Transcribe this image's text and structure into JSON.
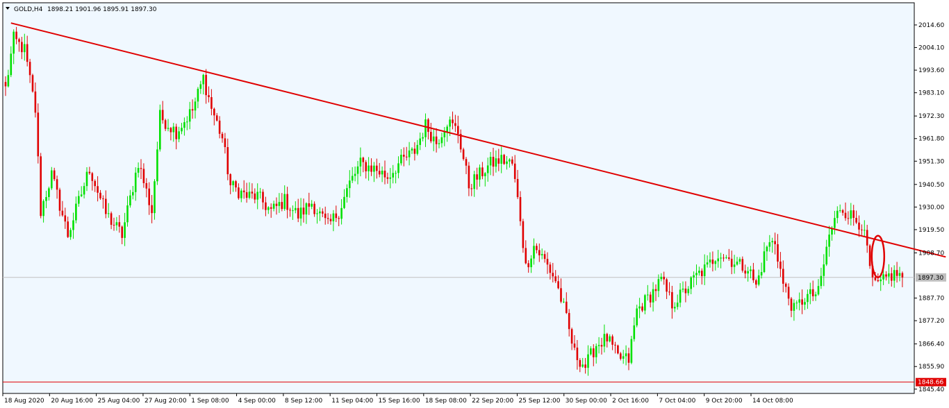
{
  "header": {
    "symbol": "GOLD,H4",
    "ohlc": "1898.21 1901.96 1895.91 1897.30",
    "menu_icon": "triangle-down-icon"
  },
  "colors": {
    "background": "#F0F8FF",
    "bull": "#00E000",
    "bear": "#E00000",
    "trendline": "#E00000",
    "current_price_line": "#C0C0C0",
    "support_line": "#E00000",
    "annotation": "#E00000"
  },
  "chart_data": {
    "type": "candlestick",
    "symbol": "GOLD",
    "timeframe": "H4",
    "yticks": [
      2014.6,
      2004.1,
      1993.6,
      1983.1,
      1972.3,
      1961.8,
      1951.3,
      1940.5,
      1930.0,
      1919.5,
      1908.7,
      1887.7,
      1877.2,
      1866.4,
      1855.9,
      1845.4
    ],
    "ytick_labels": [
      "2014.60",
      "2004.10",
      "1993.60",
      "1983.10",
      "1972.30",
      "1961.80",
      "1951.30",
      "1940.50",
      "1930.00",
      "1919.50",
      "1908.70",
      "1887.70",
      "1877.20",
      "1866.40",
      "1855.90",
      "1845.40"
    ],
    "ylim": [
      1843.4,
      2024.9
    ],
    "xtick_labels": [
      "18 Aug 2020",
      "20 Aug 16:00",
      "25 Aug 04:00",
      "27 Aug 20:00",
      "1 Sep 08:00",
      "4 Sep 00:00",
      "8 Sep 12:00",
      "11 Sep 04:00",
      "15 Sep 16:00",
      "18 Sep 08:00",
      "22 Sep 20:00",
      "25 Sep 12:00",
      "30 Sep 00:00",
      "2 Oct 16:00",
      "7 Oct 04:00",
      "9 Oct 20:00",
      "14 Oct 08:00"
    ],
    "current_price": {
      "value": 1897.3,
      "label": "1897.30"
    },
    "support_level": {
      "value": 1848.66,
      "label": "1848.66"
    },
    "trendline": {
      "start": {
        "bar": 2,
        "price": 2015.5
      },
      "end": {
        "bar": 347,
        "price": 1906.8
      }
    },
    "annotation": {
      "type": "ellipse",
      "center": {
        "bar": 322,
        "price": 1907.0
      }
    },
    "anchors": [
      {
        "bar": 0,
        "price": 1985
      },
      {
        "bar": 3,
        "price": 2008
      },
      {
        "bar": 7,
        "price": 2003
      },
      {
        "bar": 11,
        "price": 1975
      },
      {
        "bar": 13,
        "price": 1928
      },
      {
        "bar": 17,
        "price": 1945
      },
      {
        "bar": 23,
        "price": 1917
      },
      {
        "bar": 31,
        "price": 1948
      },
      {
        "bar": 37,
        "price": 1927
      },
      {
        "bar": 43,
        "price": 1917
      },
      {
        "bar": 49,
        "price": 1951
      },
      {
        "bar": 54,
        "price": 1928
      },
      {
        "bar": 57,
        "price": 1972
      },
      {
        "bar": 63,
        "price": 1965
      },
      {
        "bar": 69,
        "price": 1975
      },
      {
        "bar": 73,
        "price": 1990
      },
      {
        "bar": 76,
        "price": 1976
      },
      {
        "bar": 80,
        "price": 1962
      },
      {
        "bar": 83,
        "price": 1940
      },
      {
        "bar": 89,
        "price": 1935
      },
      {
        "bar": 93,
        "price": 1935
      },
      {
        "bar": 98,
        "price": 1928
      },
      {
        "bar": 103,
        "price": 1933
      },
      {
        "bar": 108,
        "price": 1926
      },
      {
        "bar": 113,
        "price": 1932
      },
      {
        "bar": 119,
        "price": 1921
      },
      {
        "bar": 123,
        "price": 1928
      },
      {
        "bar": 127,
        "price": 1941
      },
      {
        "bar": 131,
        "price": 1950
      },
      {
        "bar": 136,
        "price": 1948
      },
      {
        "bar": 141,
        "price": 1944
      },
      {
        "bar": 145,
        "price": 1950
      },
      {
        "bar": 151,
        "price": 1956
      },
      {
        "bar": 155,
        "price": 1968
      },
      {
        "bar": 159,
        "price": 1960
      },
      {
        "bar": 163,
        "price": 1970
      },
      {
        "bar": 167,
        "price": 1965
      },
      {
        "bar": 171,
        "price": 1940
      },
      {
        "bar": 175,
        "price": 1945
      },
      {
        "bar": 179,
        "price": 1950
      },
      {
        "bar": 183,
        "price": 1952
      },
      {
        "bar": 187,
        "price": 1950
      },
      {
        "bar": 190,
        "price": 1925
      },
      {
        "bar": 192,
        "price": 1902
      },
      {
        "bar": 195,
        "price": 1912
      },
      {
        "bar": 199,
        "price": 1905
      },
      {
        "bar": 203,
        "price": 1896
      },
      {
        "bar": 206,
        "price": 1883
      },
      {
        "bar": 210,
        "price": 1862
      },
      {
        "bar": 214,
        "price": 1856
      },
      {
        "bar": 218,
        "price": 1866
      },
      {
        "bar": 222,
        "price": 1869
      },
      {
        "bar": 226,
        "price": 1860
      },
      {
        "bar": 230,
        "price": 1859
      },
      {
        "bar": 233,
        "price": 1882
      },
      {
        "bar": 238,
        "price": 1889
      },
      {
        "bar": 242,
        "price": 1896
      },
      {
        "bar": 246,
        "price": 1885
      },
      {
        "bar": 250,
        "price": 1890
      },
      {
        "bar": 255,
        "price": 1898
      },
      {
        "bar": 259,
        "price": 1902
      },
      {
        "bar": 263,
        "price": 1909
      },
      {
        "bar": 267,
        "price": 1906
      },
      {
        "bar": 271,
        "price": 1903
      },
      {
        "bar": 274,
        "price": 1902
      },
      {
        "bar": 277,
        "price": 1893
      },
      {
        "bar": 281,
        "price": 1912
      },
      {
        "bar": 284,
        "price": 1914
      },
      {
        "bar": 287,
        "price": 1894
      },
      {
        "bar": 291,
        "price": 1882
      },
      {
        "bar": 295,
        "price": 1888
      },
      {
        "bar": 300,
        "price": 1890
      },
      {
        "bar": 304,
        "price": 1917
      },
      {
        "bar": 308,
        "price": 1930
      },
      {
        "bar": 312,
        "price": 1926
      },
      {
        "bar": 316,
        "price": 1922
      },
      {
        "bar": 318,
        "price": 1910
      },
      {
        "bar": 320,
        "price": 1894
      },
      {
        "bar": 323,
        "price": 1894
      },
      {
        "bar": 326,
        "price": 1898
      },
      {
        "bar": 329,
        "price": 1899
      },
      {
        "bar": 331,
        "price": 1897.3
      }
    ],
    "bar_count": 332
  }
}
